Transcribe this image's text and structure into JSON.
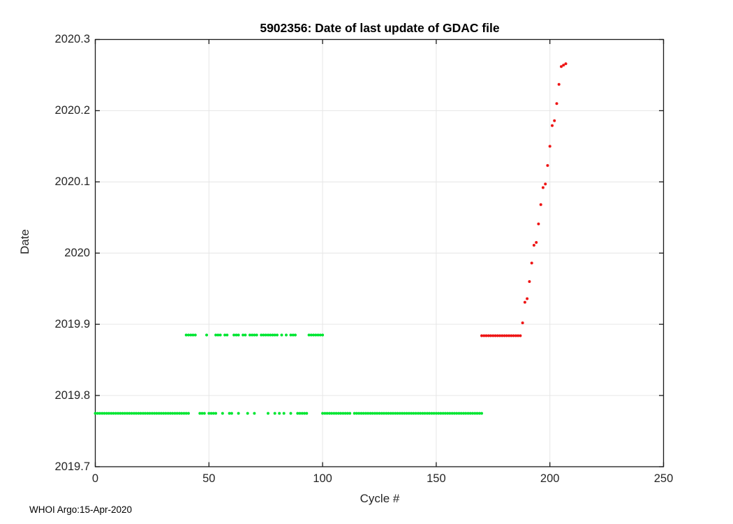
{
  "figure": {
    "title": "5902356: Date of last update of GDAC file",
    "xlabel": "Cycle #",
    "ylabel": "Date",
    "watermark": "WHOI Argo:15-Apr-2020"
  },
  "chart_data": {
    "type": "scatter",
    "title": "5902356: Date of last update of GDAC file",
    "xlabel": "Cycle #",
    "ylabel": "Date",
    "xlim": [
      0,
      250
    ],
    "ylim": [
      2019.7,
      2020.3
    ],
    "x_ticks": [
      0,
      50,
      100,
      150,
      200,
      250
    ],
    "x_tick_labels": [
      "0",
      "50",
      "100",
      "150",
      "200",
      "250"
    ],
    "y_ticks": [
      2019.7,
      2019.8,
      2019.9,
      2020.0,
      2020.1,
      2020.2,
      2020.3
    ],
    "y_tick_labels": [
      "2019.7",
      "2019.8",
      "2019.9",
      "2020",
      "2020.1",
      "2020.2",
      "2020.3"
    ],
    "grid": true,
    "legend": "none",
    "marker_radius": 2,
    "axis_color": "#1a1a1a",
    "grid_color": "#e6e6e6",
    "series": [
      {
        "name": "gdac-file-date-green",
        "color": "#00e632",
        "marker": "dot",
        "runs": [
          {
            "y": 2019.775,
            "cycles": [
              [
                0,
                41
              ],
              [
                46,
                48
              ],
              [
                50,
                53
              ],
              [
                56,
                56
              ],
              [
                59,
                60
              ],
              [
                63,
                63
              ],
              [
                67,
                67
              ],
              [
                70,
                70
              ],
              [
                76,
                76
              ],
              [
                79,
                79
              ],
              [
                81,
                81
              ],
              [
                83,
                83
              ],
              [
                86,
                86
              ],
              [
                89,
                93
              ],
              [
                100,
                112
              ],
              [
                114,
                170
              ]
            ]
          },
          {
            "y": 2019.885,
            "cycles": [
              [
                40,
                44
              ],
              [
                49,
                49
              ],
              [
                53,
                55
              ],
              [
                57,
                58
              ],
              [
                61,
                63
              ],
              [
                65,
                66
              ],
              [
                68,
                71
              ],
              [
                73,
                80
              ],
              [
                82,
                82
              ],
              [
                84,
                84
              ],
              [
                86,
                88
              ],
              [
                94,
                100
              ]
            ]
          }
        ],
        "points": []
      },
      {
        "name": "gdac-file-date-red",
        "color": "#ee1515",
        "marker": "dot",
        "runs": [
          {
            "y": 2019.884,
            "cycles": [
              [
                170,
                187
              ]
            ]
          }
        ],
        "points": [
          [
            188,
            2019.902
          ],
          [
            189,
            2019.931
          ],
          [
            190,
            2019.936
          ],
          [
            191,
            2019.96
          ],
          [
            192,
            2019.986
          ],
          [
            193,
            2020.011
          ],
          [
            194,
            2020.015
          ],
          [
            195,
            2020.041
          ],
          [
            196,
            2020.068
          ],
          [
            197,
            2020.092
          ],
          [
            198,
            2020.097
          ],
          [
            199,
            2020.123
          ],
          [
            200,
            2020.15
          ],
          [
            201,
            2020.179
          ],
          [
            202,
            2020.186
          ],
          [
            203,
            2020.21
          ],
          [
            204,
            2020.237
          ],
          [
            205,
            2020.262
          ],
          [
            206,
            2020.264
          ],
          [
            207,
            2020.266
          ]
        ]
      }
    ]
  }
}
